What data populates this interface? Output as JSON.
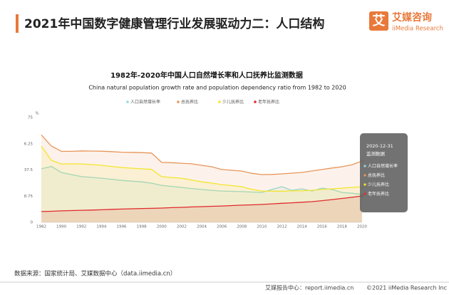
{
  "header": {
    "title": "2021年中国数字健康管理行业发展驱动力二：人口结构",
    "logo_mark": "艾",
    "logo_name": "艾媒咨询",
    "logo_sub": "iiMedia Research"
  },
  "source": "数据来源：国家统计局、艾媒数据中心（data.iimedia.cn）",
  "footer": {
    "left": "艾媒报告中心：report.iimedia.cn",
    "right": "©2021  iiMedia Research  Inc"
  },
  "chart_data": {
    "type": "line",
    "title": "1982年-2020年中国人口自然增长率和人口抚养比监测数据",
    "subtitle": "China natural population growth rate and population dependency ratio from 1982  to 2020",
    "y_unit": "%",
    "categories": [
      "1982",
      null,
      "1990",
      null,
      "1992",
      null,
      "1994",
      null,
      "1996",
      null,
      "1998",
      null,
      "2000",
      null,
      "2002",
      null,
      "2004",
      null,
      "2006",
      null,
      "2008",
      null,
      "2010",
      null,
      "2012",
      null,
      "2014",
      null,
      "2016",
      null,
      "2018",
      null,
      "2020"
    ],
    "ylim": [
      0,
      75
    ],
    "yticks": [
      0,
      {
        "value": 18.75,
        "label": "8.75"
      },
      37.5,
      {
        "value": 56.25,
        "label": "6.25"
      },
      75
    ],
    "series": [
      {
        "name": "人口自然增长率",
        "color": "#8fdcd8",
        "values": [
          38.3,
          40.0,
          35.7,
          34.2,
          32.7,
          32.2,
          31.6,
          30.8,
          30.0,
          29.5,
          29.0,
          28.0,
          26.5,
          25.7,
          25.0,
          24.2,
          23.5,
          22.9,
          22.4,
          22.2,
          22.0,
          21.7,
          21.4,
          23.5,
          25.5,
          22.9,
          24.0,
          22.4,
          24.5,
          23.5,
          21.4,
          20.8,
          20.0
        ]
      },
      {
        "name": "总抚养比",
        "color": "#e8955a",
        "values": [
          62.6,
          54.6,
          50.8,
          50.8,
          51.1,
          51.0,
          50.9,
          50.6,
          50.2,
          50.1,
          49.9,
          49.6,
          42.9,
          42.7,
          42.3,
          41.9,
          40.8,
          39.8,
          37.8,
          37.3,
          36.7,
          35.1,
          34.2,
          34.3,
          34.7,
          35.2,
          35.7,
          36.8,
          37.8,
          38.9,
          39.8,
          41.2,
          43.9
        ]
      },
      {
        "name": "少儿抚养比",
        "color": "#f3e52c",
        "values": [
          54.6,
          44.4,
          41.8,
          41.9,
          41.8,
          41.4,
          40.8,
          40.0,
          39.3,
          38.8,
          38.3,
          37.9,
          32.7,
          32.1,
          31.6,
          30.3,
          29.0,
          28.1,
          27.0,
          26.3,
          25.5,
          23.6,
          22.4,
          22.3,
          22.3,
          22.5,
          22.6,
          22.9,
          23.5,
          24.0,
          24.5,
          25.0,
          25.5
        ]
      },
      {
        "name": "老年抚养比",
        "color": "#e02b2b",
        "values": [
          7.7,
          7.9,
          8.2,
          8.4,
          8.6,
          8.8,
          9.0,
          9.3,
          9.5,
          9.7,
          9.9,
          10.0,
          10.2,
          10.5,
          10.7,
          11.0,
          11.2,
          11.5,
          11.7,
          12.0,
          12.3,
          12.5,
          12.8,
          13.2,
          13.6,
          14.0,
          14.4,
          14.8,
          15.5,
          16.3,
          17.1,
          17.9,
          18.9
        ]
      }
    ],
    "tooltip": {
      "date": "2020-12-31",
      "label": "监测数据"
    }
  }
}
